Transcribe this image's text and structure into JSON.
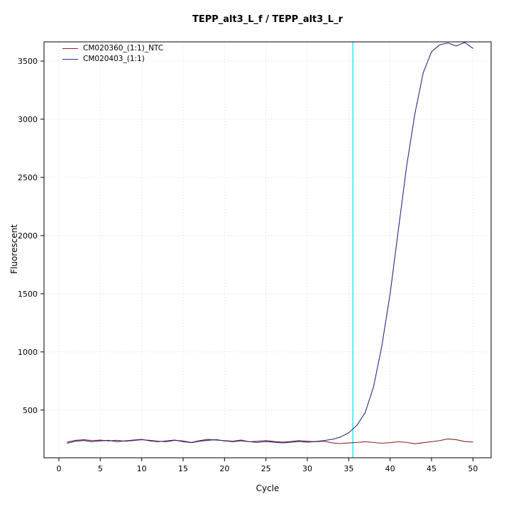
{
  "chart_data": {
    "type": "line",
    "title": "TEPP_alt3_L_f / TEPP_alt3_L_r",
    "xlabel": "Cycle",
    "ylabel": "Fluorescent",
    "legend_position": "top-left",
    "grid": true,
    "x_range": [
      -1.8,
      52.2
    ],
    "y_range": [
      90,
      3665
    ],
    "x_ticks": [
      0,
      5,
      10,
      15,
      20,
      25,
      30,
      35,
      40,
      45,
      50
    ],
    "y_ticks": [
      500,
      1000,
      1500,
      2000,
      2500,
      3000,
      3500
    ],
    "threshold_line": {
      "x": 35.5,
      "color": "#00eeee"
    },
    "x": [
      1,
      2,
      3,
      4,
      5,
      6,
      7,
      8,
      9,
      10,
      11,
      12,
      13,
      14,
      15,
      16,
      17,
      18,
      19,
      20,
      21,
      22,
      23,
      24,
      25,
      26,
      27,
      28,
      29,
      30,
      31,
      32,
      33,
      34,
      35,
      36,
      37,
      38,
      39,
      40,
      41,
      42,
      43,
      44,
      45,
      46,
      47,
      48,
      49,
      50
    ],
    "series": [
      {
        "name": "CM020360_(1:1)_NTC",
        "color": "#8b2323",
        "values": [
          225,
          240,
          245,
          238,
          242,
          235,
          240,
          232,
          238,
          245,
          240,
          232,
          228,
          240,
          235,
          222,
          238,
          248,
          242,
          238,
          232,
          242,
          228,
          232,
          238,
          230,
          225,
          230,
          238,
          232,
          228,
          232,
          218,
          212,
          218,
          222,
          228,
          222,
          215,
          220,
          228,
          222,
          210,
          220,
          228,
          238,
          252,
          245,
          230,
          225
        ]
      },
      {
        "name": "CM020403_(1:1)",
        "color": "#28288b",
        "values": [
          215,
          232,
          238,
          228,
          235,
          240,
          228,
          235,
          242,
          248,
          235,
          228,
          235,
          242,
          228,
          220,
          232,
          240,
          246,
          235,
          228,
          236,
          228,
          222,
          230,
          224,
          218,
          224,
          230,
          224,
          230,
          238,
          248,
          268,
          305,
          370,
          480,
          700,
          1050,
          1500,
          2050,
          2600,
          3050,
          3400,
          3580,
          3640,
          3655,
          3630,
          3660,
          3610
        ]
      }
    ]
  }
}
